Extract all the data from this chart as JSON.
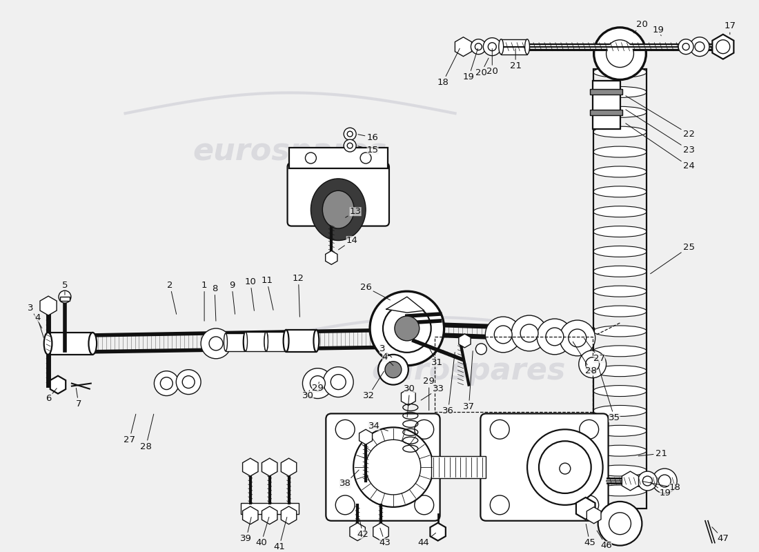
{
  "background_color": "#f0f0f0",
  "watermark_text": "eurospares",
  "watermark_color": "#c8c8d0",
  "line_color": "#111111",
  "label_color": "#111111",
  "label_fontsize": 9.5,
  "fig_width": 11.0,
  "fig_height": 8.0,
  "dpi": 100
}
